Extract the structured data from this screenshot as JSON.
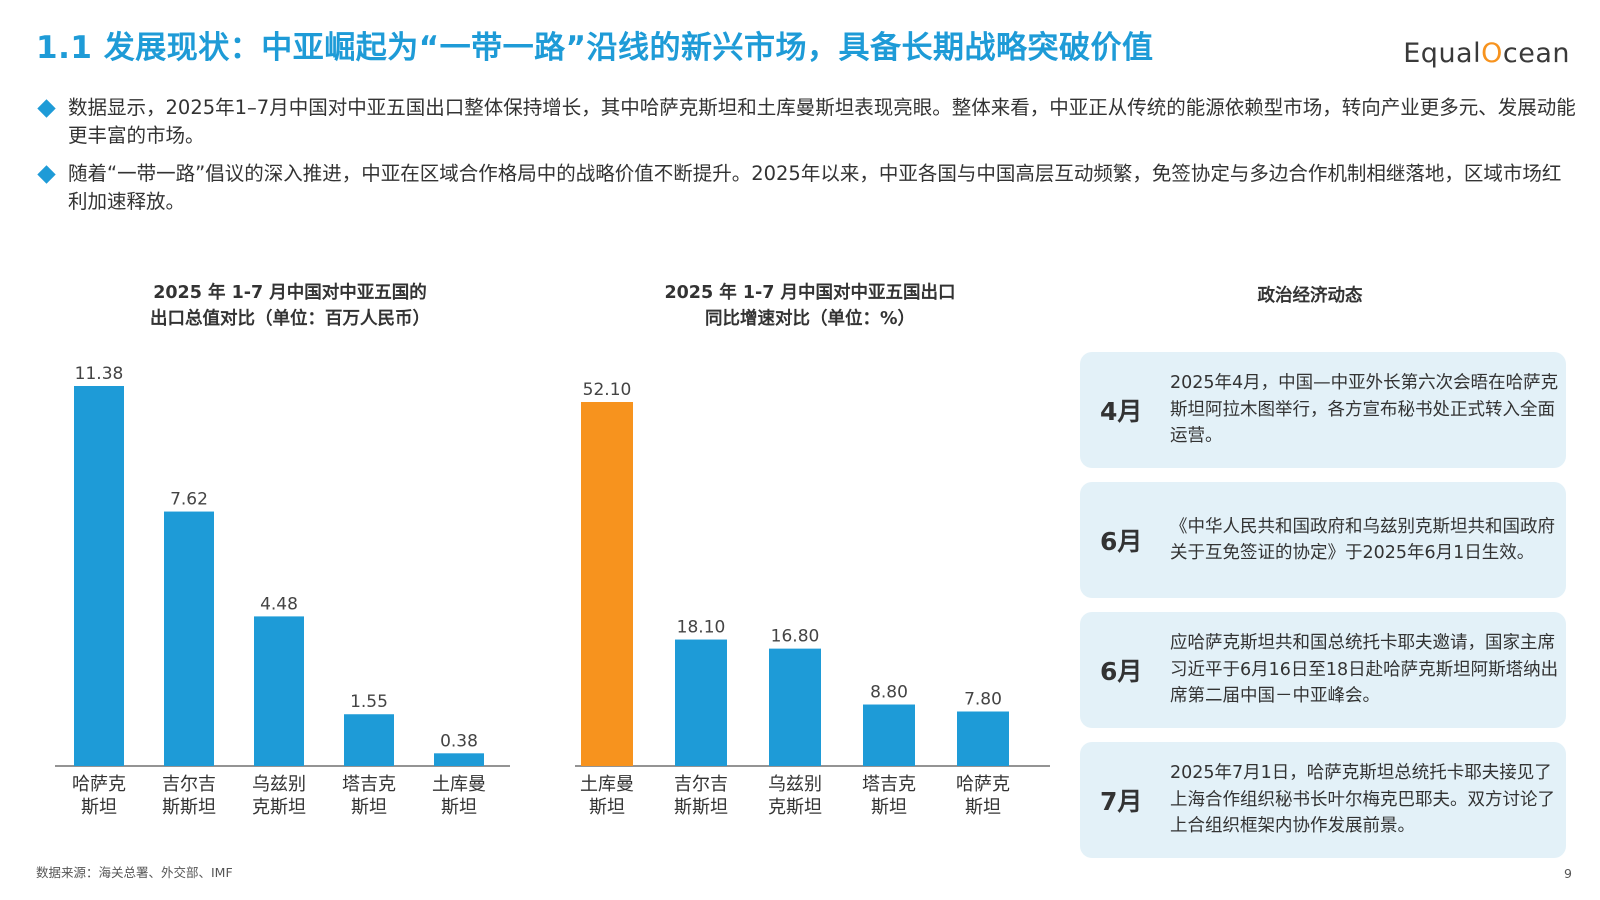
{
  "header": {
    "title": "1.1 发展现状：中亚崛起为“一带一路”沿线的新兴市场，具备长期战略突破价值",
    "logo": {
      "part1": "Equal",
      "part2": "O",
      "part3": "cean"
    }
  },
  "bullets": [
    "数据显示，2025年1–7月中国对中亚五国出口整体保持增长，其中哈萨克斯坦和土库曼斯坦表现亮眼。整体来看，中亚正从传统的能源依赖型市场，转向产业更多元、发展动能更丰富的市场。",
    "随着“一带一路”倡议的深入推进，中亚在区域合作格局中的战略价值不断提升。2025年以来，中亚各国与中国高层互动频繁，免签协定与多边合作机制相继落地，区域市场红利加速释放。"
  ],
  "chart_data": [
    {
      "type": "bar",
      "title_line1": "2025 年 1-7 月中国对中亚五国的",
      "title_line2": "出口总值对比（单位：百万人民币）",
      "categories": [
        [
          "哈萨克",
          "斯坦"
        ],
        [
          "吉尔吉",
          "斯斯坦"
        ],
        [
          "乌兹别",
          "克斯坦"
        ],
        [
          "塔吉克",
          "斯坦"
        ],
        [
          "土库曼",
          "斯坦"
        ]
      ],
      "values": [
        11.38,
        7.62,
        4.48,
        1.55,
        0.38
      ],
      "value_labels": [
        "11.38",
        "7.62",
        "4.48",
        "1.55",
        "0.38"
      ],
      "colors": [
        "#1e9bd7",
        "#1e9bd7",
        "#1e9bd7",
        "#1e9bd7",
        "#1e9bd7"
      ],
      "ylim": [
        0,
        11.38
      ],
      "grid": false,
      "legend": "none"
    },
    {
      "type": "bar",
      "title_line1": "2025 年 1-7 月中国对中亚五国出口",
      "title_line2": "同比增速对比（单位：%）",
      "categories": [
        [
          "土库曼",
          "斯坦"
        ],
        [
          "吉尔吉",
          "斯斯坦"
        ],
        [
          "乌兹别",
          "克斯坦"
        ],
        [
          "塔吉克",
          "斯坦"
        ],
        [
          "哈萨克",
          "斯坦"
        ]
      ],
      "values": [
        52.1,
        18.1,
        16.8,
        8.8,
        7.8
      ],
      "value_labels": [
        "52.10",
        "18.10",
        "16.80",
        "8.80",
        "7.80"
      ],
      "colors": [
        "#f7931e",
        "#1e9bd7",
        "#1e9bd7",
        "#1e9bd7",
        "#1e9bd7"
      ],
      "ylim": [
        0,
        52.1
      ],
      "grid": false,
      "legend": "none"
    }
  ],
  "panel": {
    "title": "政治经济动态",
    "events": [
      {
        "month": "4月",
        "desc": "2025年4月，中国—中亚外长第六次会晤在哈萨克斯坦阿拉木图举行，各方宣布秘书处正式转入全面运营。"
      },
      {
        "month": "6月",
        "desc": "《中华人民共和国政府和乌兹别克斯坦共和国政府关于互免签证的协定》于2025年6月1日生效。"
      },
      {
        "month": "6月",
        "desc": "应哈萨克斯坦共和国总统托卡耶夫邀请，国家主席习近平于6月16日至18日赴哈萨克斯坦阿斯塔纳出席第二届中国－中亚峰会。"
      },
      {
        "month": "7月",
        "desc": "2025年7月1日，哈萨克斯坦总统托卡耶夫接见了上海合作组织秘书长叶尔梅克巴耶夫。双方讨论了上合组织框架内协作发展前景。"
      }
    ]
  },
  "footer": {
    "source": "数据来源：海关总署、外交部、IMF",
    "page": "9"
  },
  "colors": {
    "accent": "#1e9bd7",
    "highlight": "#f7931e",
    "panel_bg": "#e3f1f8"
  }
}
